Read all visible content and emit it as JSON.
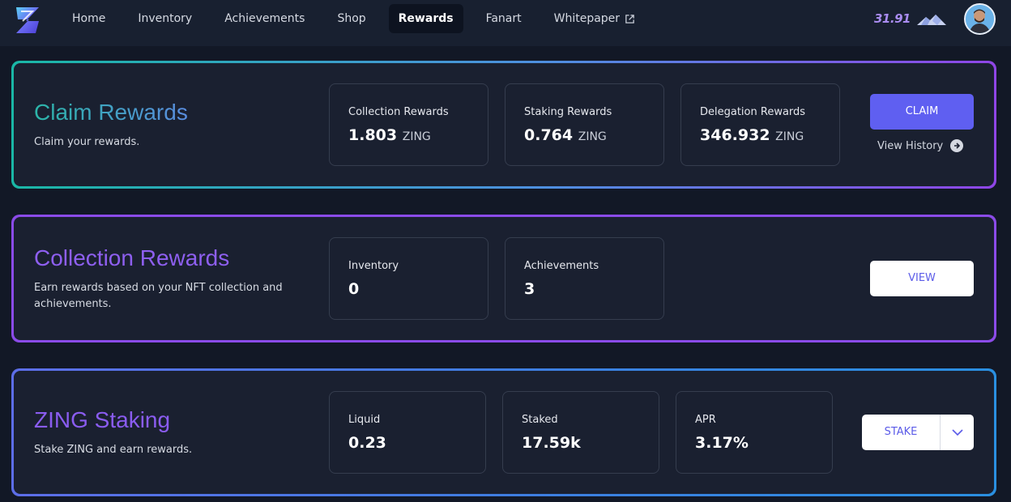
{
  "nav": {
    "items": [
      {
        "label": "Home",
        "name": "nav-home"
      },
      {
        "label": "Inventory",
        "name": "nav-inventory"
      },
      {
        "label": "Achievements",
        "name": "nav-achievements"
      },
      {
        "label": "Shop",
        "name": "nav-shop"
      },
      {
        "label": "Rewards",
        "name": "nav-rewards"
      },
      {
        "label": "Fanart",
        "name": "nav-fanart"
      },
      {
        "label": "Whitepaper",
        "name": "nav-whitepaper"
      }
    ],
    "active": "Rewards",
    "balance": "31.91"
  },
  "claim": {
    "title": "Claim Rewards",
    "desc": "Claim your rewards.",
    "stats": [
      {
        "label": "Collection Rewards",
        "value": "1.803",
        "unit": "ZING"
      },
      {
        "label": "Staking Rewards",
        "value": "0.764",
        "unit": "ZING"
      },
      {
        "label": "Delegation Rewards",
        "value": "346.932",
        "unit": "ZING"
      }
    ],
    "button": "CLAIM",
    "history": "View History"
  },
  "collection": {
    "title": "Collection Rewards",
    "desc": "Earn rewards based on your NFT collection and achievements.",
    "stats": [
      {
        "label": "Inventory",
        "value": "0"
      },
      {
        "label": "Achievements",
        "value": "3"
      }
    ],
    "button": "VIEW"
  },
  "staking": {
    "title": "ZING Staking",
    "desc": "Stake ZING and earn rewards.",
    "stats": [
      {
        "label": "Liquid",
        "value": "0.23"
      },
      {
        "label": "Staked",
        "value": "17.59k"
      },
      {
        "label": "APR",
        "value": "3.17%"
      }
    ],
    "button": "STAKE"
  },
  "colors": {
    "accent": "#5f5ff1",
    "background": "#121826",
    "card": "#1a2030"
  }
}
